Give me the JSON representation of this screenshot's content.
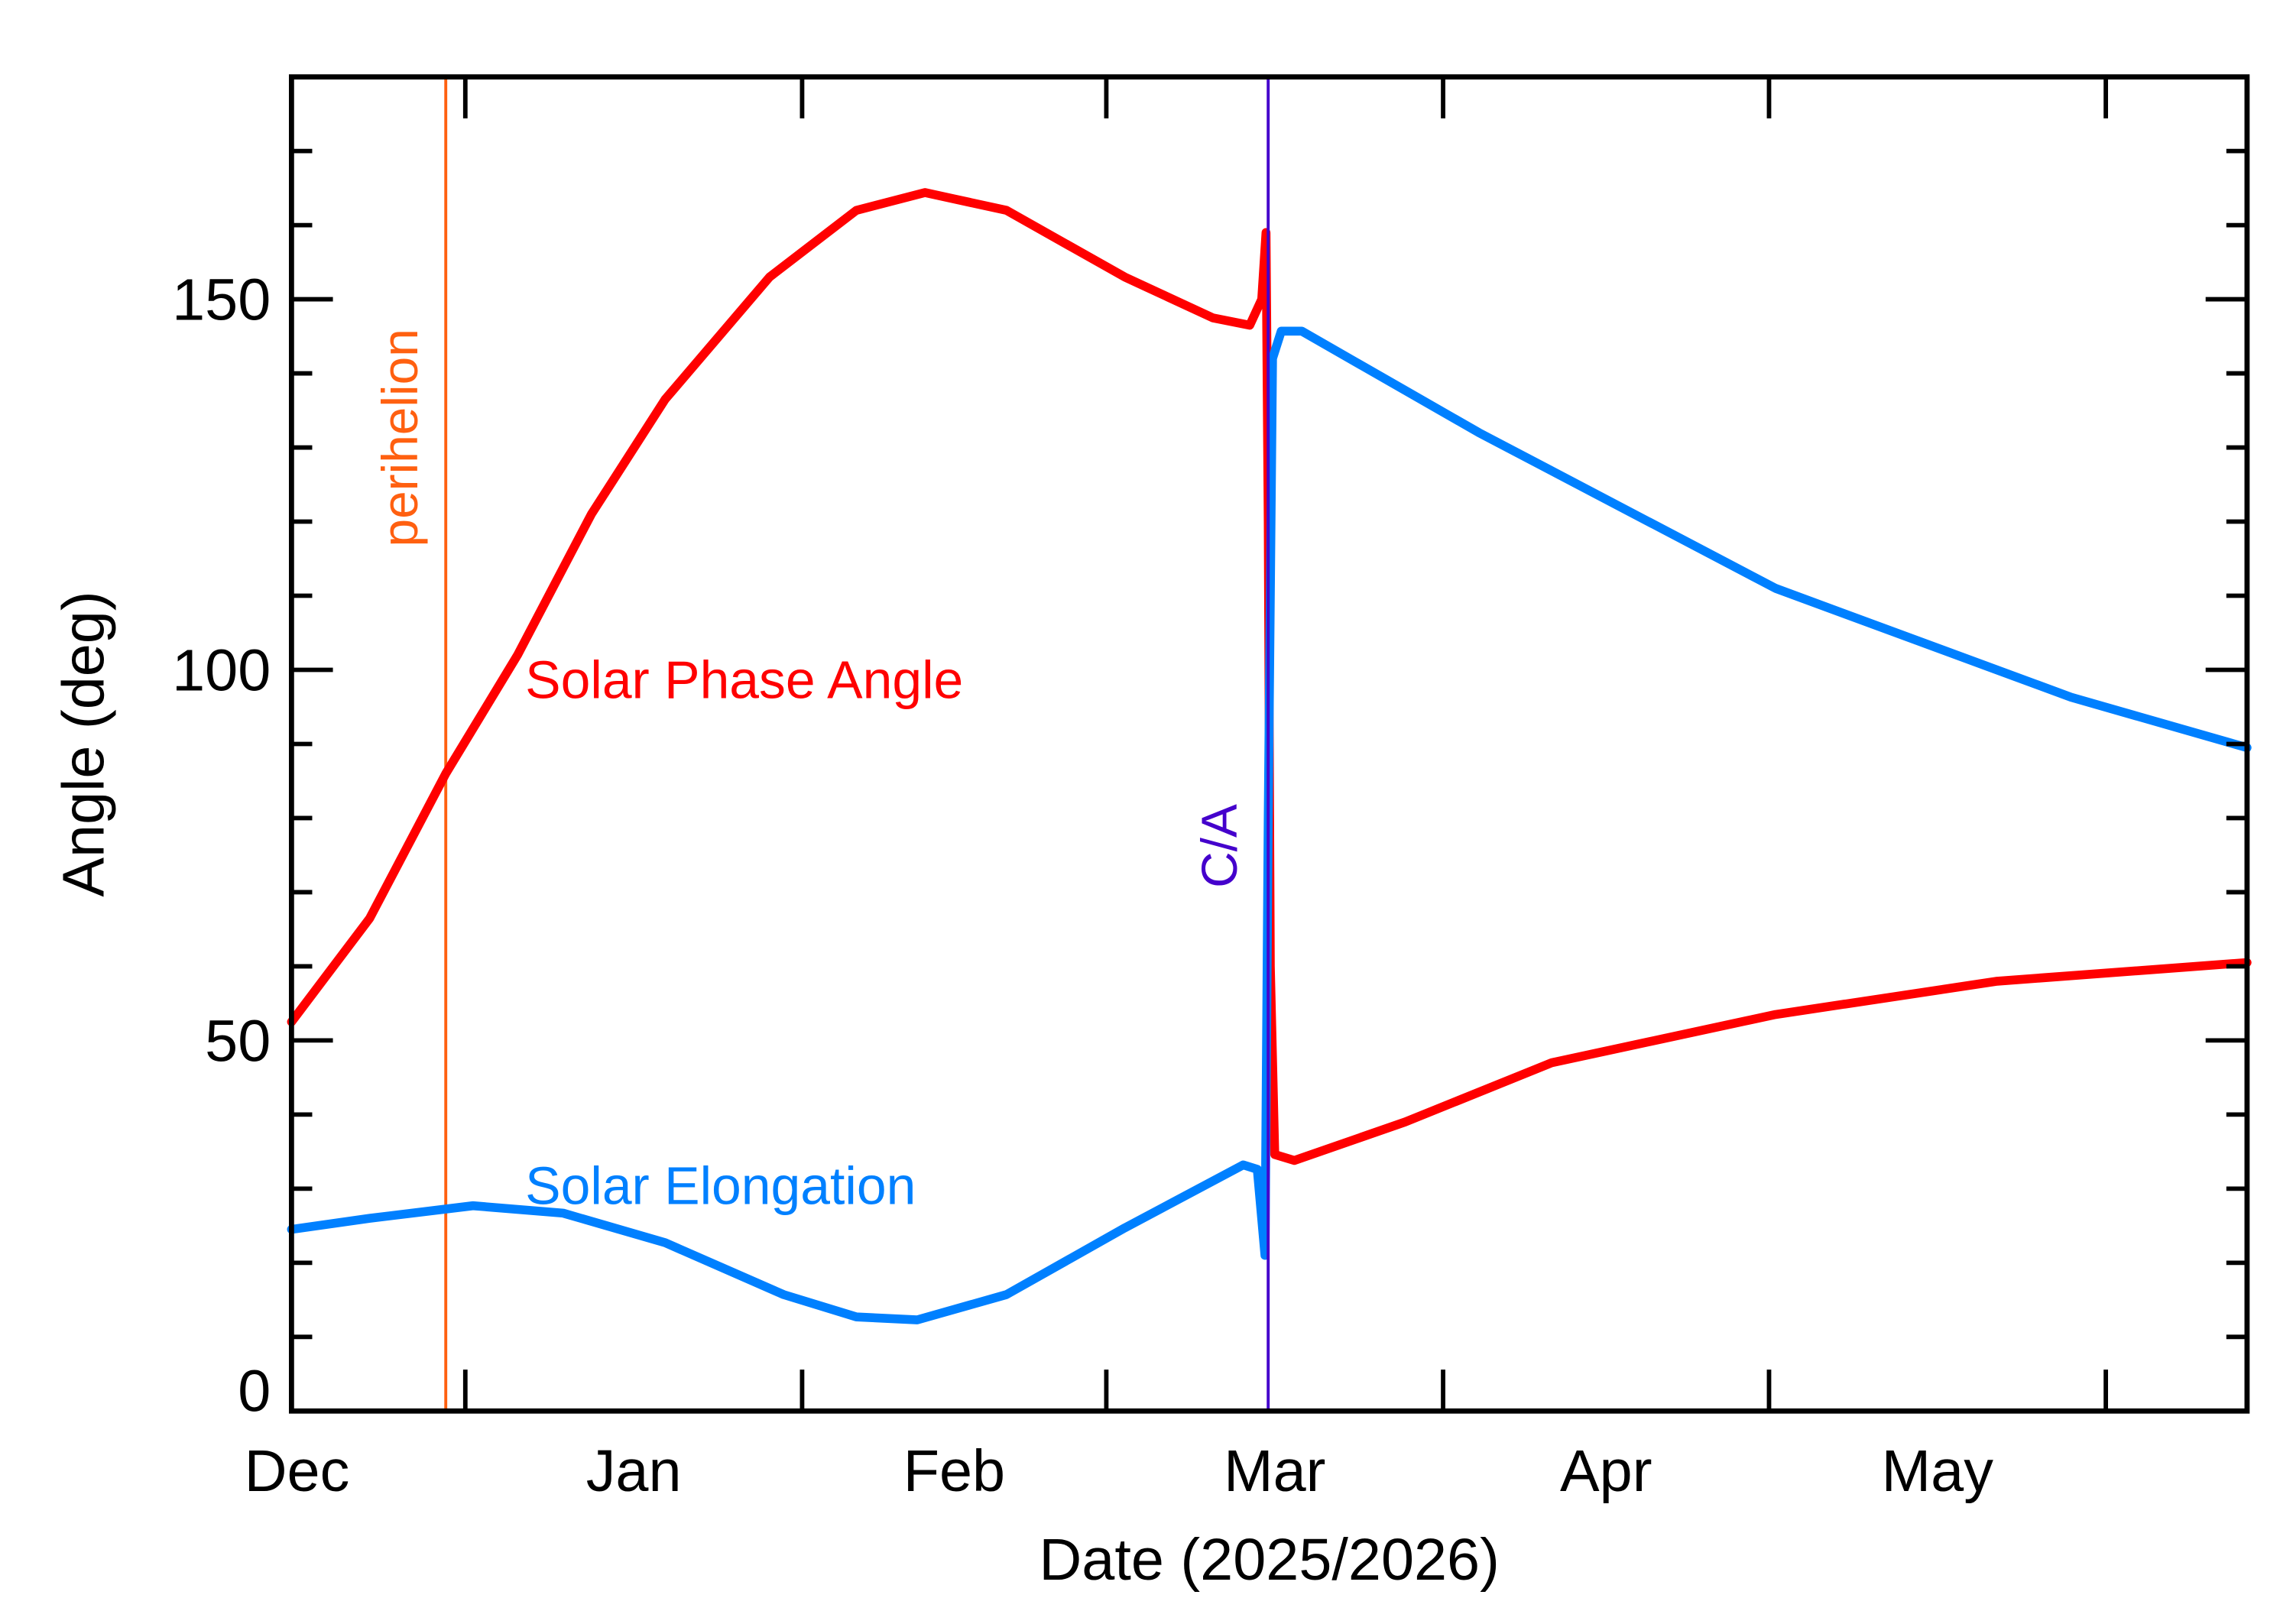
{
  "chart_data": {
    "type": "line",
    "title": "",
    "xlabel": "Date (2025/2026)",
    "ylabel": "Angle (deg)",
    "x_units": "days since 2025-12-16",
    "xlim": [
      0,
      180
    ],
    "ylim": [
      0,
      180
    ],
    "grid": false,
    "y_major_ticks": [
      0,
      50,
      100,
      150
    ],
    "y_tick_labels": [
      "0",
      "50",
      "100",
      "150"
    ],
    "y_minor_step": 10,
    "x_major_ticks": [
      16,
      47,
      75,
      106,
      136,
      167
    ],
    "x_month_labels": [
      {
        "label": "Dec",
        "x": 0.5
      },
      {
        "label": "Jan",
        "x": 31.5
      },
      {
        "label": "Feb",
        "x": 61
      },
      {
        "label": "Mar",
        "x": 90.5
      },
      {
        "label": "Apr",
        "x": 121
      },
      {
        "label": "May",
        "x": 151.5
      }
    ],
    "series": [
      {
        "name": "Solar Phase Angle",
        "color": "#ff0000",
        "x": [
          0,
          7.2,
          14.2,
          20.8,
          27.6,
          34.4,
          44,
          52,
          58.3,
          65.8,
          76.7,
          84.8,
          88.2,
          89.3,
          89.7,
          89.9,
          90.1,
          90.5,
          92.3,
          102.5,
          116,
          136.6,
          157,
          180
        ],
        "y": [
          52.5,
          66.5,
          86,
          102,
          121,
          136.5,
          153,
          162,
          164.4,
          162,
          153,
          147.5,
          146.5,
          150,
          159,
          120,
          60,
          34.6,
          33.8,
          39,
          47,
          53.5,
          58,
          60.5
        ]
      },
      {
        "name": "Solar Elongation",
        "color": "#0080ff",
        "x": [
          0,
          7.2,
          16.7,
          25,
          34.4,
          45.3,
          52,
          57.6,
          65.8,
          76.7,
          87.6,
          88.9,
          89.6,
          89.9,
          90.3,
          91.1,
          93,
          109.3,
          136.6,
          163.8,
          180
        ],
        "y": [
          24.5,
          26,
          27.7,
          26.7,
          22.7,
          15.7,
          12.7,
          12.3,
          15.7,
          24.7,
          33.2,
          32.6,
          21,
          80,
          142,
          145.7,
          145.7,
          132,
          111,
          96.3,
          89.5
        ]
      }
    ],
    "annotations": [
      {
        "text": "perihelion",
        "x": 14.2,
        "color": "#ff6010",
        "type": "vertical-line"
      },
      {
        "text": "C/A",
        "x": 89.9,
        "color": "#4400cc",
        "type": "vertical-line"
      },
      {
        "text": "Solar Phase Angle",
        "color": "#ff0000"
      },
      {
        "text": "Solar Elongation",
        "color": "#0080ff"
      }
    ]
  }
}
